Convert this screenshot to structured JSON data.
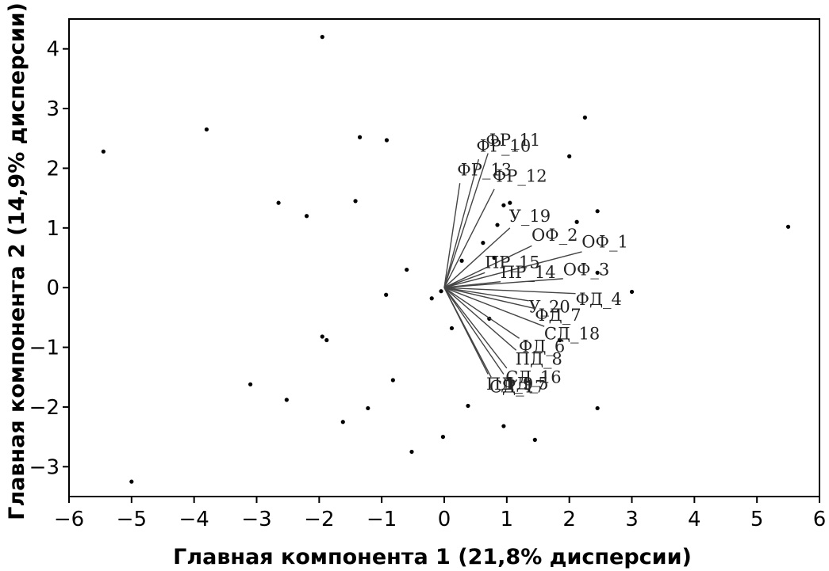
{
  "chart_data": {
    "type": "scatter",
    "title": "",
    "xlabel": "Главная компонента 1 (21,8% дисперсии)",
    "ylabel": "Главная компонента 2 (14,9% дисперсии)",
    "xlim": [
      -6,
      6
    ],
    "ylim": [
      -3.5,
      4.5
    ],
    "xticks": [
      -6,
      -5,
      -4,
      -3,
      -2,
      -1,
      0,
      1,
      2,
      3,
      4,
      5,
      6
    ],
    "yticks": [
      -3,
      -2,
      -1,
      0,
      1,
      2,
      3,
      4
    ],
    "xtick_labels": [
      "−6",
      "−5",
      "−4",
      "−3",
      "−2",
      "−1",
      "0",
      "1",
      "2",
      "3",
      "4",
      "5",
      "6"
    ],
    "ytick_labels": [
      "−3",
      "−2",
      "−1",
      "0",
      "1",
      "2",
      "3",
      "4"
    ],
    "grid": false,
    "points": [
      [
        -1.95,
        4.2
      ],
      [
        -3.8,
        2.65
      ],
      [
        -5.45,
        2.28
      ],
      [
        -1.35,
        2.52
      ],
      [
        -0.92,
        2.47
      ],
      [
        -2.65,
        1.42
      ],
      [
        -2.2,
        1.2
      ],
      [
        -1.42,
        1.45
      ],
      [
        -0.6,
        0.3
      ],
      [
        -0.93,
        -0.12
      ],
      [
        -0.2,
        -0.18
      ],
      [
        -0.05,
        -0.06
      ],
      [
        0.12,
        -0.68
      ],
      [
        0.28,
        0.45
      ],
      [
        0.62,
        0.75
      ],
      [
        0.72,
        -0.52
      ],
      [
        0.8,
        0.5
      ],
      [
        0.85,
        1.05
      ],
      [
        0.95,
        1.38
      ],
      [
        1.05,
        1.42
      ],
      [
        2.25,
        2.85
      ],
      [
        2.0,
        2.2
      ],
      [
        2.12,
        1.1
      ],
      [
        2.45,
        1.28
      ],
      [
        1.85,
        -0.88
      ],
      [
        2.45,
        0.25
      ],
      [
        3.0,
        -0.07
      ],
      [
        5.5,
        1.02
      ],
      [
        -1.95,
        -0.82
      ],
      [
        -1.88,
        -0.88
      ],
      [
        -3.1,
        -1.62
      ],
      [
        -2.52,
        -1.88
      ],
      [
        -0.82,
        -1.55
      ],
      [
        -1.22,
        -2.02
      ],
      [
        -1.62,
        -2.25
      ],
      [
        0.38,
        -1.98
      ],
      [
        0.95,
        -2.32
      ],
      [
        1.45,
        -2.55
      ],
      [
        2.45,
        -2.02
      ],
      [
        -0.02,
        -2.5
      ],
      [
        -0.52,
        -2.75
      ],
      [
        -5.0,
        -3.25
      ]
    ],
    "vectors": [
      {
        "name": "ФР_11",
        "x": 0.7,
        "y": 2.25
      },
      {
        "name": "ФР_10",
        "x": 0.55,
        "y": 2.15
      },
      {
        "name": "ФР_13",
        "x": 0.25,
        "y": 1.75
      },
      {
        "name": "ФР_12",
        "x": 0.8,
        "y": 1.65
      },
      {
        "name": "У_19",
        "x": 1.05,
        "y": 1.0
      },
      {
        "name": "ОФ_2",
        "x": 1.4,
        "y": 0.7
      },
      {
        "name": "ОФ_1",
        "x": 2.2,
        "y": 0.6
      },
      {
        "name": "ПР_15",
        "x": 0.65,
        "y": 0.25
      },
      {
        "name": "ПР_14",
        "x": 0.9,
        "y": 0.1
      },
      {
        "name": "ОФ_3",
        "x": 1.9,
        "y": 0.15
      },
      {
        "name": "ФД_4",
        "x": 2.1,
        "y": -0.1
      },
      {
        "name": "У_20",
        "x": 1.35,
        "y": -0.22
      },
      {
        "name": "ФД_7",
        "x": 1.45,
        "y": -0.35
      },
      {
        "name": "СД_18",
        "x": 1.6,
        "y": -0.65
      },
      {
        "name": "ФД_6",
        "x": 1.2,
        "y": -0.85
      },
      {
        "name": "ПД_8",
        "x": 1.15,
        "y": -1.05
      },
      {
        "name": "СД_16",
        "x": 1.0,
        "y": -1.35
      },
      {
        "name": "СД_17",
        "x": 0.75,
        "y": -1.5
      },
      {
        "name": "ПД_9",
        "x": 0.7,
        "y": -1.45
      },
      {
        "name": "ФД_5",
        "x": 0.95,
        "y": -1.45
      }
    ]
  }
}
